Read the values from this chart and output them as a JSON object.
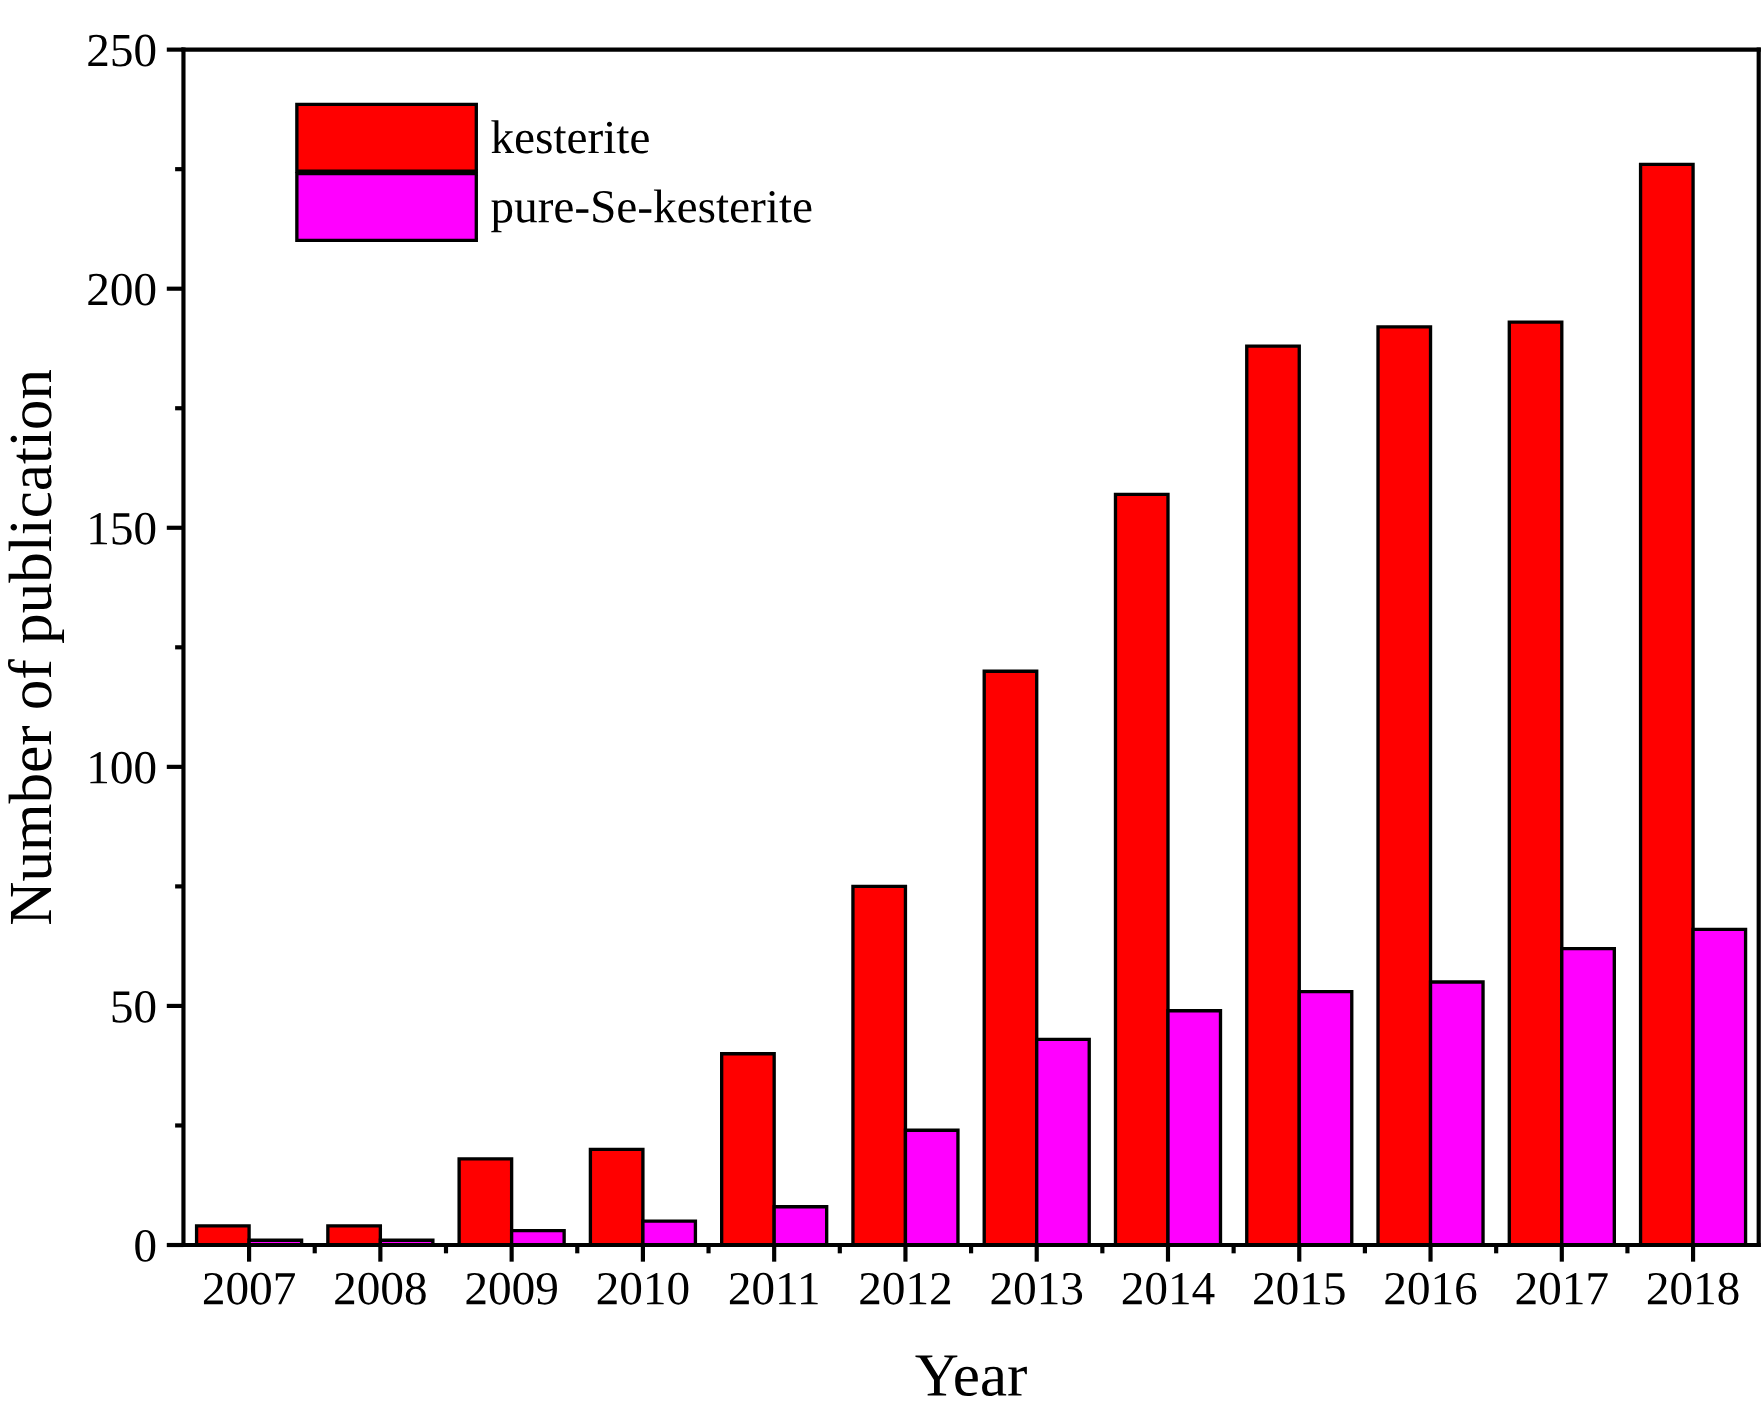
{
  "chart_data": {
    "type": "bar",
    "xlabel": "Year",
    "ylabel": "Number of publication",
    "categories": [
      "2007",
      "2008",
      "2009",
      "2010",
      "2011",
      "2012",
      "2013",
      "2014",
      "2015",
      "2016",
      "2017",
      "2018"
    ],
    "series": [
      {
        "name": "kesterite",
        "color": "#ff0000",
        "values": [
          4,
          4,
          18,
          20,
          40,
          75,
          120,
          157,
          188,
          192,
          193,
          226
        ]
      },
      {
        "name": "pure-Se-kesterite",
        "color": "#ff00ff",
        "values": [
          1,
          1,
          3,
          5,
          8,
          24,
          43,
          49,
          53,
          55,
          62,
          66
        ]
      }
    ],
    "ylim": [
      0,
      250
    ],
    "yticks": [
      0,
      50,
      100,
      150,
      200,
      250
    ],
    "grid": false,
    "legend": "top left"
  }
}
